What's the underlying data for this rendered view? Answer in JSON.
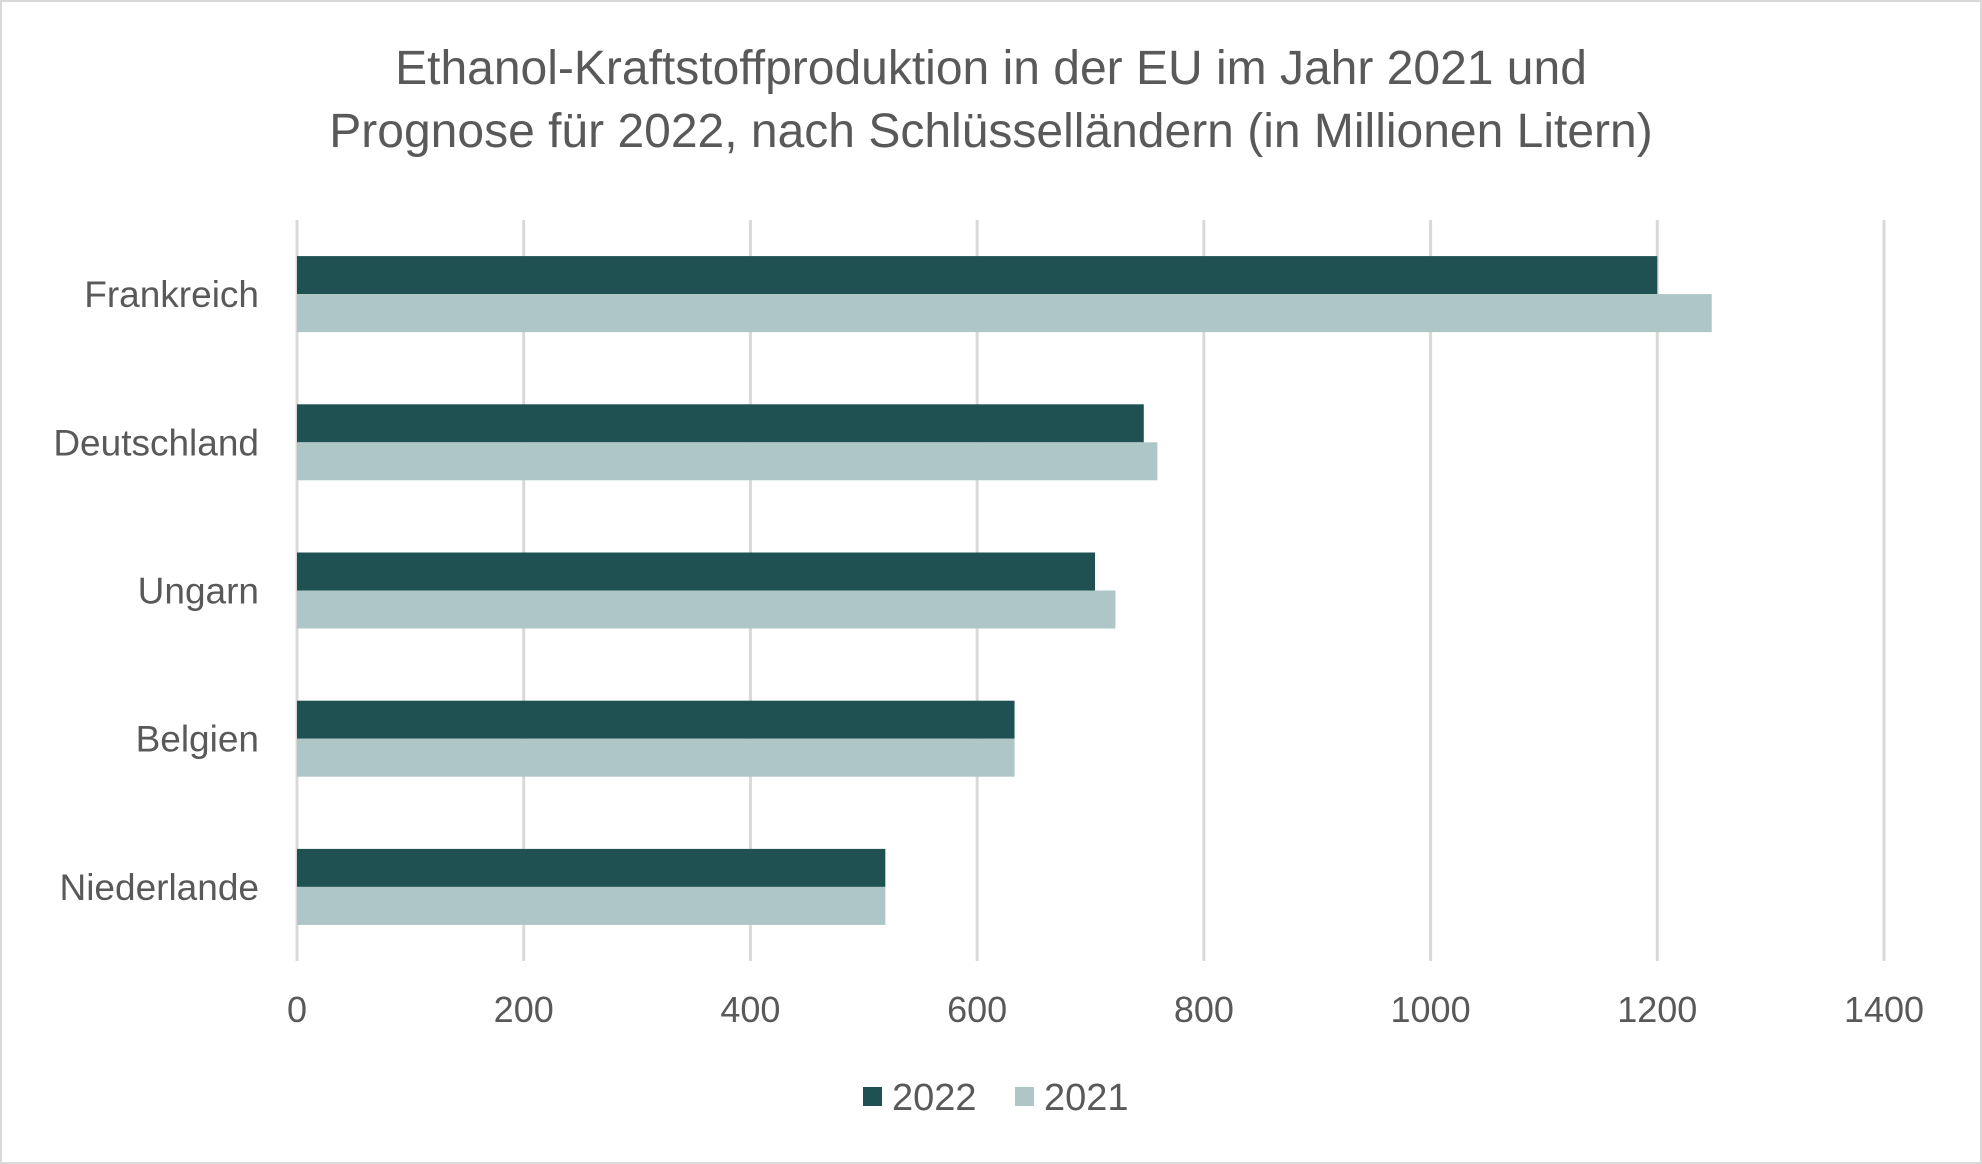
{
  "chart_data": {
    "type": "bar",
    "orientation": "horizontal",
    "title": "Ethanol-Kraftstoffproduktion in der EU im Jahr 2021 und Prognose für 2022, nach Schlüsselländern (in Millionen Litern)",
    "title_lines": [
      "Ethanol-Kraftstoffproduktion in der EU im Jahr 2021 und",
      "Prognose für 2022, nach Schlüsselländern (in Millionen Litern)"
    ],
    "categories": [
      "Frankreich",
      "Deutschland",
      "Ungarn",
      "Belgien",
      "Niederlande"
    ],
    "series": [
      {
        "name": "2022",
        "color": "#1f5153",
        "values": [
          1200,
          747,
          704,
          633,
          519
        ]
      },
      {
        "name": "2021",
        "color": "#afc6c7",
        "values": [
          1248,
          759,
          722,
          633,
          519
        ]
      }
    ],
    "xlim": [
      0,
      1400
    ],
    "xticks": [
      "0",
      "200",
      "400",
      "600",
      "800",
      "1000",
      "1200",
      "1400"
    ],
    "xlabel": "",
    "ylabel": "",
    "grid": "vertical",
    "legend": "bottom"
  }
}
